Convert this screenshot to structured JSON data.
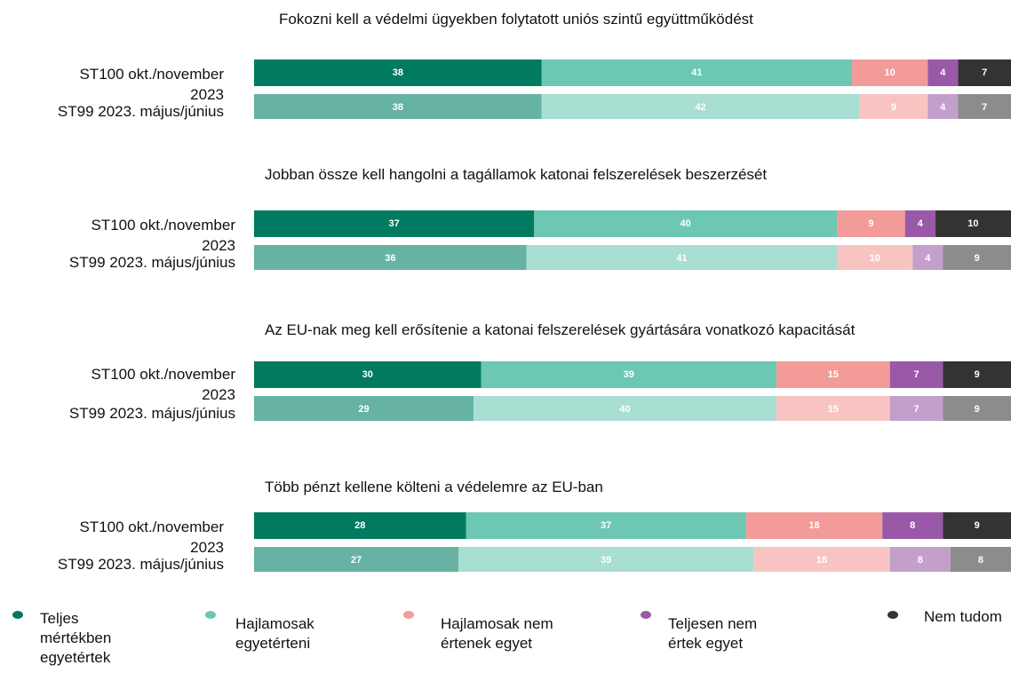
{
  "chart_data": {
    "type": "bar",
    "orientation": "horizontal",
    "stacked": true,
    "xlim": [
      0,
      100
    ],
    "series": [
      {
        "name": "Teljes mértékben egyetértek",
        "colors": [
          "#007b5f",
          "#66b3a3"
        ]
      },
      {
        "name": "Hajlamosak egyetérteni",
        "colors": [
          "#6cc7b3",
          "#a9ded2"
        ]
      },
      {
        "name": "Hajlamosak nem értenek egyet",
        "colors": [
          "#f39b98",
          "#f7c4c2"
        ]
      },
      {
        "name": "Teljesen nem értek egyet",
        "colors": [
          "#9a58a8",
          "#c39fcb"
        ]
      },
      {
        "name": "Nem tudom",
        "colors": [
          "#333333",
          "#8c8c8c"
        ]
      }
    ],
    "panels": [
      {
        "title": "Fokozni kell a védelmi ügyekben folytatott uniós szintű együttműködést",
        "categories": [
          "ST100 okt./november 2023",
          "ST99 2023. május/június"
        ],
        "values": [
          [
            38,
            41,
            10,
            4,
            7
          ],
          [
            38,
            42,
            9,
            4,
            7
          ]
        ]
      },
      {
        "title": "Jobban össze kell hangolni a tagállamok katonai felszerelések beszerzését",
        "categories": [
          "ST100 okt./november 2023",
          "ST99 2023. május/június"
        ],
        "values": [
          [
            37,
            40,
            9,
            4,
            10
          ],
          [
            36,
            41,
            10,
            4,
            9
          ]
        ]
      },
      {
        "title": "Az EU-nak meg kell erősítenie a katonai felszerelések gyártására vonatkozó kapacitását",
        "categories": [
          "ST100 okt./november 2023",
          "ST99 2023. május/június"
        ],
        "values": [
          [
            30,
            39,
            15,
            7,
            9
          ],
          [
            29,
            40,
            15,
            7,
            9
          ]
        ]
      },
      {
        "title": "Több pénzt kellene költeni a védelemre az EU-ban",
        "categories": [
          "ST100 okt./november 2023",
          "ST99 2023. május/június"
        ],
        "values": [
          [
            28,
            37,
            18,
            8,
            9
          ],
          [
            27,
            39,
            18,
            8,
            8
          ]
        ]
      }
    ]
  }
}
